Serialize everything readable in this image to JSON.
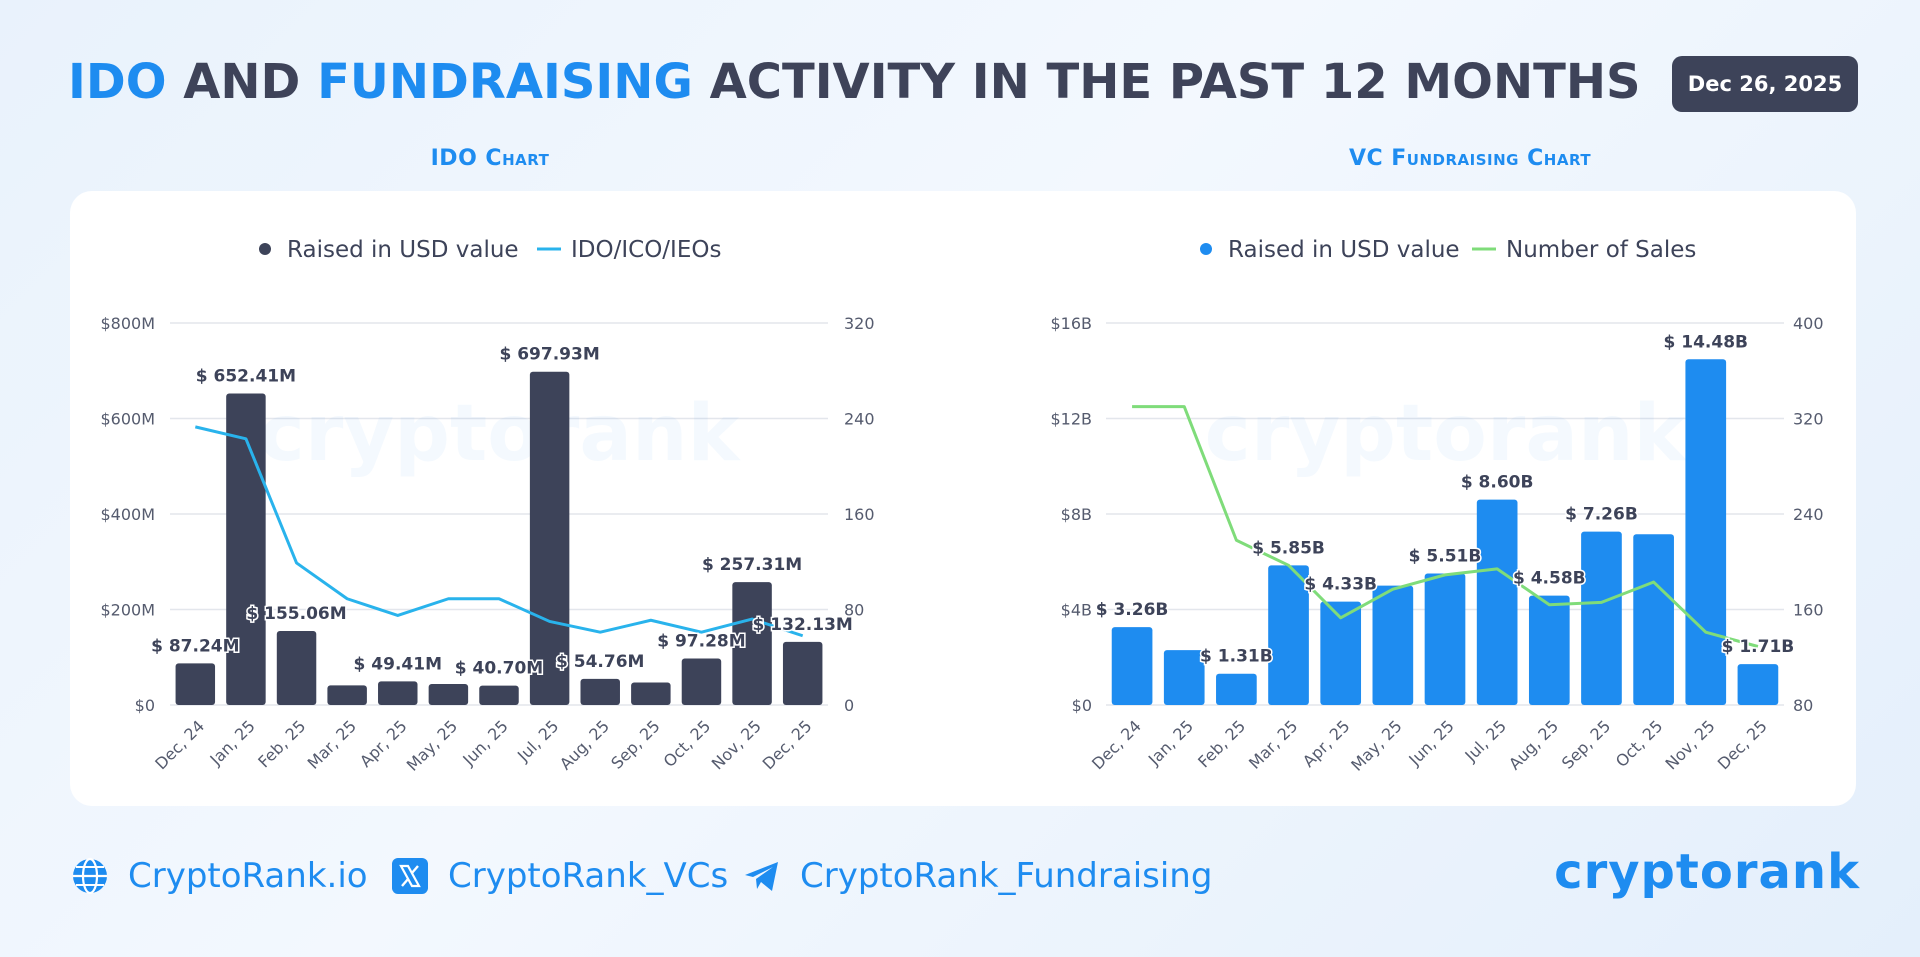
{
  "header": {
    "title_parts": [
      "IDO",
      " AND ",
      "FUNDRAISING",
      " ACTIVITY IN THE PAST 12 MONTHS"
    ],
    "date": "Dec 26, 2025"
  },
  "footer": {
    "site": "CryptoRank.io",
    "twitter": "CryptoRank_VCs",
    "telegram": "CryptoRank_Fundraising",
    "brand": "cryptorank"
  },
  "colors": {
    "accent": "#1e8cf0",
    "dark": "#3d4359",
    "ido_line": "#29b3ec",
    "sales_line": "#7fdc7a"
  },
  "chart_data": [
    {
      "type": "bar",
      "title": "IDO Chart",
      "legend": [
        "Raised in USD value",
        "IDO/ICO/IEOs"
      ],
      "categories": [
        "Dec, 24",
        "Jan, 25",
        "Feb, 25",
        "Mar, 25",
        "Apr, 25",
        "May, 25",
        "Jun, 25",
        "Jul, 25",
        "Aug, 25",
        "Sep, 25",
        "Oct, 25",
        "Nov, 25",
        "Dec, 25"
      ],
      "left_axis": {
        "ticks": [
          "$0",
          "$200M",
          "$400M",
          "$600M",
          "$800M"
        ],
        "max": 800
      },
      "right_axis": {
        "ticks": [
          "0",
          "80",
          "160",
          "240",
          "320"
        ],
        "max": 320
      },
      "series": [
        {
          "name": "Raised in USD value",
          "unit": "M USD",
          "values": [
            87.24,
            652.41,
            155.06,
            41,
            49.41,
            44,
            40.7,
            697.93,
            54.76,
            47,
            97.28,
            257.31,
            132.13
          ]
        },
        {
          "name": "IDO/ICO/IEOs",
          "values": [
            233,
            223,
            119,
            89,
            75,
            89,
            89,
            70,
            61,
            71,
            61,
            72,
            58
          ]
        }
      ],
      "labels": [
        "$ 87.24M",
        "$ 652.41M",
        "$ 155.06M",
        "",
        "$ 49.41M",
        "",
        "$ 40.70M",
        "$ 697.93M",
        "$ 54.76M",
        "",
        "$ 97.28M",
        "$ 257.31M",
        "$ 132.13M"
      ]
    },
    {
      "type": "bar",
      "title": "VC Fundraising Chart",
      "legend": [
        "Raised in USD value",
        "Number of Sales"
      ],
      "categories": [
        "Dec, 24",
        "Jan, 25",
        "Feb, 25",
        "Mar, 25",
        "Apr, 25",
        "May, 25",
        "Jun, 25",
        "Jul, 25",
        "Aug, 25",
        "Sep, 25",
        "Oct, 25",
        "Nov, 25",
        "Dec, 25"
      ],
      "left_axis": {
        "ticks": [
          "$0",
          "$4B",
          "$8B",
          "$12B",
          "$16B"
        ],
        "max": 16
      },
      "right_axis": {
        "ticks": [
          "80",
          "160",
          "240",
          "320",
          "400"
        ],
        "min": 80,
        "max": 400
      },
      "series": [
        {
          "name": "Raised in USD value",
          "unit": "B USD",
          "values": [
            3.26,
            2.3,
            1.31,
            5.85,
            4.33,
            5.0,
            5.51,
            8.6,
            4.58,
            7.26,
            7.15,
            14.48,
            1.71
          ]
        },
        {
          "name": "Number of Sales",
          "values": [
            330,
            330,
            218,
            197,
            153,
            177,
            189,
            194,
            164,
            166,
            183,
            141,
            129
          ]
        }
      ],
      "labels": [
        "$ 3.26B",
        "",
        "$ 1.31B",
        "$ 5.85B",
        "$ 4.33B",
        "",
        "$ 5.51B",
        "$ 8.60B",
        "$ 4.58B",
        "$ 7.26B",
        "",
        "$ 14.48B",
        "$ 1.71B"
      ]
    }
  ]
}
